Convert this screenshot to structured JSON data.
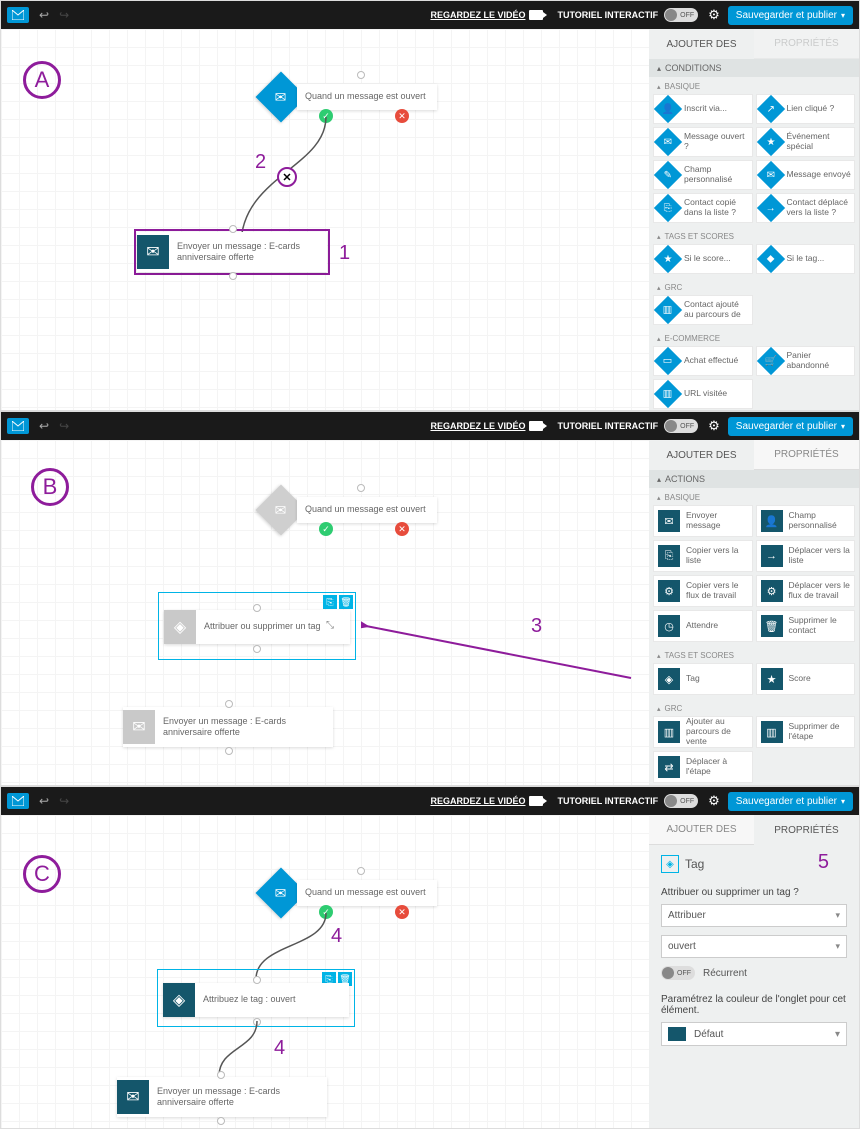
{
  "colors": {
    "accent": "#0097d6",
    "actionSquare": "#14566b",
    "purple": "#8e1c9b",
    "green": "#2ecc71",
    "red": "#e74c3c",
    "selBlue": "#00b4e6"
  },
  "topbar": {
    "videoLink": "REGARDEZ LE VIDÉO",
    "tutorial": "TUTORIEL INTERACTIF",
    "toggle": "OFF",
    "save": "Sauvegarder et publier"
  },
  "tabs": {
    "add": "AJOUTER DES",
    "props": "PROPRIÉTÉS"
  },
  "sections": {
    "conditions": "CONDITIONS",
    "actions": "ACTIONS",
    "basique": "BASIQUE",
    "tags": "TAGS ET SCORES",
    "grc": "GRC",
    "ecom": "E-COMMERCE"
  },
  "cond_basique": [
    {
      "l": "Inscrit via...",
      "i": "👤"
    },
    {
      "l": "Lien cliqué ?",
      "i": "↗"
    },
    {
      "l": "Message ouvert ?",
      "i": "✉"
    },
    {
      "l": "Événement spécial",
      "i": "★"
    },
    {
      "l": "Champ personnalisé",
      "i": "✎"
    },
    {
      "l": "Message envoyé",
      "i": "✉"
    },
    {
      "l": "Contact copié dans la liste ?",
      "i": "⎘"
    },
    {
      "l": "Contact déplacé vers la liste ?",
      "i": "→"
    }
  ],
  "cond_tags": [
    {
      "l": "Si le score...",
      "i": "★"
    },
    {
      "l": "Si le tag...",
      "i": "◆"
    }
  ],
  "cond_grc": [
    {
      "l": "Contact ajouté au parcours de",
      "i": "▥"
    }
  ],
  "cond_ecom": [
    {
      "l": "Achat effectué",
      "i": "▭"
    },
    {
      "l": "Panier abandonné",
      "i": "🛒"
    },
    {
      "l": "URL visitée",
      "i": "▥"
    }
  ],
  "act_basique": [
    {
      "l": "Envoyer message",
      "i": "✉"
    },
    {
      "l": "Champ personnalisé",
      "i": "👤"
    },
    {
      "l": "Copier vers la liste",
      "i": "⎘"
    },
    {
      "l": "Déplacer vers la liste",
      "i": "→"
    },
    {
      "l": "Copier vers le flux de travail",
      "i": "⚙"
    },
    {
      "l": "Déplacer vers le flux de travail",
      "i": "⚙"
    },
    {
      "l": "Attendre",
      "i": "◷"
    },
    {
      "l": "Supprimer le contact",
      "i": "🗑"
    }
  ],
  "act_tags": [
    {
      "l": "Tag",
      "i": "◈"
    },
    {
      "l": "Score",
      "i": "★"
    }
  ],
  "act_grc": [
    {
      "l": "Ajouter au parcours de vente",
      "i": "▥"
    },
    {
      "l": "Supprimer de l'étape",
      "i": "▥"
    },
    {
      "l": "Déplacer à l'étape",
      "i": "⇄"
    }
  ],
  "nodes": {
    "trigger": "Quand un message est ouvert",
    "send": "Envoyer un message : E-cards anniversaire offerte",
    "tagAssign": "Attribuer ou supprimer un tag",
    "tagSet": "Attribuez le tag : ouvert"
  },
  "props": {
    "title": "Tag",
    "question": "Attribuer ou supprimer un tag ?",
    "sel1": "Attribuer",
    "sel2": "ouvert",
    "recurrent": "Récurrent",
    "toggle": "OFF",
    "colorLabel": "Paramétrez la couleur de l'onglet pour cet élément.",
    "colorValue": "Défaut"
  },
  "anno": {
    "A": "A",
    "B": "B",
    "C": "C",
    "n1": "1",
    "n2": "2",
    "n3": "3",
    "n4": "4",
    "n5": "5"
  }
}
